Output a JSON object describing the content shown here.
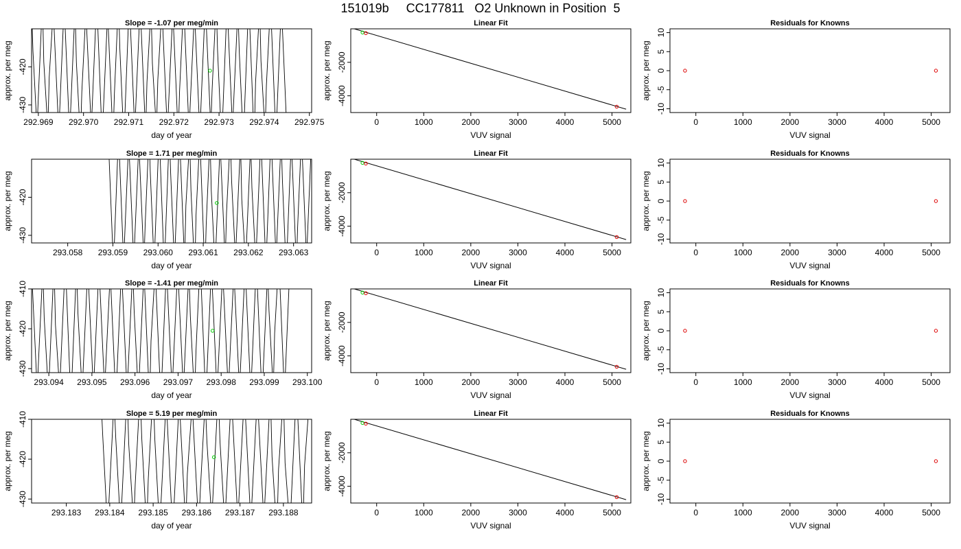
{
  "page_title": "151019b     CC177811   O2 Unknown in Position  5",
  "colors": {
    "trace": "#000000",
    "green_marker": "#00cc00",
    "red_marker": "#dd0000",
    "fit_line": "#000000"
  },
  "chart_data": [
    {
      "row": 1,
      "column": "time-series",
      "type": "line",
      "title": "Slope =  -1.07  per meg/min",
      "xlabel": "day of year",
      "ylabel": "approx. per meg",
      "xlim": [
        292.96885,
        292.97505
      ],
      "ylim": [
        -432,
        -410
      ],
      "xticks": [
        292.969,
        292.97,
        292.971,
        292.972,
        292.973,
        292.974,
        292.975
      ],
      "xtick_labels": [
        "292.969",
        "292.970",
        "292.971",
        "292.972",
        "292.973",
        "292.974",
        "292.975"
      ],
      "yticks": [
        -430,
        -420
      ],
      "ytick_labels": [
        "-430",
        "-420"
      ],
      "trace_xrange": [
        292.96885,
        292.9745
      ],
      "trace_cycles": 47,
      "trace_seed": 11,
      "marker": {
        "x": 292.9728,
        "y": -421
      }
    },
    {
      "row": 1,
      "column": "linear-fit",
      "type": "scatter",
      "title": "Linear Fit",
      "xlabel": "VUV signal",
      "ylabel": "approx. per meg",
      "xlim": [
        -550,
        5400
      ],
      "ylim": [
        -5000,
        0
      ],
      "xticks": [
        0,
        1000,
        2000,
        3000,
        4000,
        5000
      ],
      "xtick_labels": [
        "0",
        "1000",
        "2000",
        "3000",
        "4000",
        "5000"
      ],
      "yticks": [
        -4000,
        -2000
      ],
      "ytick_labels": [
        "-4000",
        "-2000"
      ],
      "fit_line": {
        "x": [
          -500,
          5300
        ],
        "y": [
          20,
          -4800
        ]
      },
      "unknown_point": {
        "x": -300,
        "y": -220
      },
      "known_points": [
        {
          "x": -230,
          "y": -260
        },
        {
          "x": 5100,
          "y": -4650
        }
      ]
    },
    {
      "row": 1,
      "column": "residuals",
      "type": "scatter",
      "title": "Residuals for Knowns",
      "xlabel": "VUV signal",
      "ylabel": "approx. per meg",
      "xlim": [
        -550,
        5400
      ],
      "ylim": [
        -11,
        11
      ],
      "xticks": [
        0,
        1000,
        2000,
        3000,
        4000,
        5000
      ],
      "xtick_labels": [
        "0",
        "1000",
        "2000",
        "3000",
        "4000",
        "5000"
      ],
      "yticks": [
        -10,
        -5,
        0,
        5,
        10
      ],
      "ytick_labels": [
        "-10",
        "-5",
        "0",
        "5",
        "10"
      ],
      "known_points": [
        {
          "x": -230,
          "y": 0
        },
        {
          "x": 5100,
          "y": 0
        }
      ]
    },
    {
      "row": 2,
      "column": "time-series",
      "type": "line",
      "title": "Slope =  1.71  per meg/min",
      "xlabel": "day of year",
      "ylabel": "approx. per meg",
      "xlim": [
        293.0572,
        293.0634
      ],
      "ylim": [
        -432,
        -410
      ],
      "xticks": [
        293.058,
        293.059,
        293.06,
        293.061,
        293.062,
        293.063
      ],
      "xtick_labels": [
        "293.058",
        "293.059",
        "293.060",
        "293.061",
        "293.062",
        "293.063"
      ],
      "yticks": [
        -430,
        -420
      ],
      "ytick_labels": [
        "-430",
        "-420"
      ],
      "trace_xrange": [
        293.0589,
        293.0634
      ],
      "trace_cycles": 40,
      "trace_seed": 23,
      "marker": {
        "x": 293.0613,
        "y": -421.5
      }
    },
    {
      "row": 2,
      "column": "linear-fit",
      "type": "scatter",
      "title": "Linear Fit",
      "xlabel": "VUV signal",
      "ylabel": "approx. per meg",
      "xlim": [
        -550,
        5400
      ],
      "ylim": [
        -5000,
        0
      ],
      "xticks": [
        0,
        1000,
        2000,
        3000,
        4000,
        5000
      ],
      "xtick_labels": [
        "0",
        "1000",
        "2000",
        "3000",
        "4000",
        "5000"
      ],
      "yticks": [
        -4000,
        -2000
      ],
      "ytick_labels": [
        "-4000",
        "-2000"
      ],
      "fit_line": {
        "x": [
          -500,
          5300
        ],
        "y": [
          20,
          -4800
        ]
      },
      "unknown_point": {
        "x": -300,
        "y": -220
      },
      "known_points": [
        {
          "x": -230,
          "y": -260
        },
        {
          "x": 5100,
          "y": -4650
        }
      ]
    },
    {
      "row": 2,
      "column": "residuals",
      "type": "scatter",
      "title": "Residuals for Knowns",
      "xlabel": "VUV signal",
      "ylabel": "approx. per meg",
      "xlim": [
        -550,
        5400
      ],
      "ylim": [
        -11,
        11
      ],
      "xticks": [
        0,
        1000,
        2000,
        3000,
        4000,
        5000
      ],
      "xtick_labels": [
        "0",
        "1000",
        "2000",
        "3000",
        "4000",
        "5000"
      ],
      "yticks": [
        -10,
        -5,
        0,
        5,
        10
      ],
      "ytick_labels": [
        "-10",
        "-5",
        "0",
        "5",
        "10"
      ],
      "known_points": [
        {
          "x": -230,
          "y": 0
        },
        {
          "x": 5100,
          "y": 0
        }
      ]
    },
    {
      "row": 3,
      "column": "time-series",
      "type": "line",
      "title": "Slope =  -1.41  per meg/min",
      "xlabel": "day of year",
      "ylabel": "approx. per meg",
      "xlim": [
        293.0936,
        293.1001
      ],
      "ylim": [
        -431,
        -410
      ],
      "xticks": [
        293.094,
        293.095,
        293.096,
        293.097,
        293.098,
        293.099,
        293.1
      ],
      "xtick_labels": [
        "293.094",
        "293.095",
        "293.096",
        "293.097",
        "293.098",
        "293.099",
        "293.100"
      ],
      "yticks": [
        -430,
        -420,
        -410
      ],
      "ytick_labels": [
        "-430",
        "-420",
        "-410"
      ],
      "trace_xrange": [
        293.0936,
        293.0996
      ],
      "trace_cycles": 46,
      "trace_seed": 37,
      "marker": {
        "x": 293.0978,
        "y": -420.5
      }
    },
    {
      "row": 3,
      "column": "linear-fit",
      "type": "scatter",
      "title": "Linear Fit",
      "xlabel": "VUV signal",
      "ylabel": "approx. per meg",
      "xlim": [
        -550,
        5400
      ],
      "ylim": [
        -5000,
        0
      ],
      "xticks": [
        0,
        1000,
        2000,
        3000,
        4000,
        5000
      ],
      "xtick_labels": [
        "0",
        "1000",
        "2000",
        "3000",
        "4000",
        "5000"
      ],
      "yticks": [
        -4000,
        -2000
      ],
      "ytick_labels": [
        "-4000",
        "-2000"
      ],
      "fit_line": {
        "x": [
          -500,
          5300
        ],
        "y": [
          20,
          -4800
        ]
      },
      "unknown_point": {
        "x": -300,
        "y": -220
      },
      "known_points": [
        {
          "x": -230,
          "y": -260
        },
        {
          "x": 5100,
          "y": -4650
        }
      ]
    },
    {
      "row": 3,
      "column": "residuals",
      "type": "scatter",
      "title": "Residuals for Knowns",
      "xlabel": "VUV signal",
      "ylabel": "approx. per meg",
      "xlim": [
        -550,
        5400
      ],
      "ylim": [
        -11,
        11
      ],
      "xticks": [
        0,
        1000,
        2000,
        3000,
        4000,
        5000
      ],
      "xtick_labels": [
        "0",
        "1000",
        "2000",
        "3000",
        "4000",
        "5000"
      ],
      "yticks": [
        -10,
        -5,
        0,
        5,
        10
      ],
      "ytick_labels": [
        "-10",
        "-5",
        "0",
        "5",
        "10"
      ],
      "known_points": [
        {
          "x": -230,
          "y": 0
        },
        {
          "x": 5100,
          "y": 0
        }
      ]
    },
    {
      "row": 4,
      "column": "time-series",
      "type": "line",
      "title": "Slope =  5.19  per meg/min",
      "xlabel": "day of year",
      "ylabel": "approx. per meg",
      "xlim": [
        293.1822,
        293.18865
      ],
      "ylim": [
        -431,
        -410
      ],
      "xticks": [
        293.183,
        293.184,
        293.185,
        293.186,
        293.187,
        293.188
      ],
      "xtick_labels": [
        "293.183",
        "293.184",
        "293.185",
        "293.186",
        "293.187",
        "293.188"
      ],
      "yticks": [
        -430,
        -420,
        -410
      ],
      "ytick_labels": [
        "-430",
        "-420",
        "-410"
      ],
      "trace_xrange": [
        293.1838,
        293.1886
      ],
      "trace_cycles": 32,
      "trace_seed": 53,
      "marker": {
        "x": 293.1864,
        "y": -419.5
      }
    },
    {
      "row": 4,
      "column": "linear-fit",
      "type": "scatter",
      "title": "Linear Fit",
      "xlabel": "VUV signal",
      "ylabel": "approx. per meg",
      "xlim": [
        -550,
        5400
      ],
      "ylim": [
        -5000,
        0
      ],
      "xticks": [
        0,
        1000,
        2000,
        3000,
        4000,
        5000
      ],
      "xtick_labels": [
        "0",
        "1000",
        "2000",
        "3000",
        "4000",
        "5000"
      ],
      "yticks": [
        -4000,
        -2000
      ],
      "ytick_labels": [
        "-4000",
        "-2000"
      ],
      "fit_line": {
        "x": [
          -500,
          5300
        ],
        "y": [
          20,
          -4800
        ]
      },
      "unknown_point": {
        "x": -300,
        "y": -220
      },
      "known_points": [
        {
          "x": -230,
          "y": -260
        },
        {
          "x": 5100,
          "y": -4650
        }
      ]
    },
    {
      "row": 4,
      "column": "residuals",
      "type": "scatter",
      "title": "Residuals for Knowns",
      "xlabel": "VUV signal",
      "ylabel": "approx. per meg",
      "xlim": [
        -550,
        5400
      ],
      "ylim": [
        -11,
        11
      ],
      "xticks": [
        0,
        1000,
        2000,
        3000,
        4000,
        5000
      ],
      "xtick_labels": [
        "0",
        "1000",
        "2000",
        "3000",
        "4000",
        "5000"
      ],
      "yticks": [
        -10,
        -5,
        0,
        5,
        10
      ],
      "ytick_labels": [
        "-10",
        "-5",
        "0",
        "5",
        "10"
      ],
      "known_points": [
        {
          "x": -230,
          "y": 0
        },
        {
          "x": 5100,
          "y": 0
        }
      ]
    }
  ]
}
